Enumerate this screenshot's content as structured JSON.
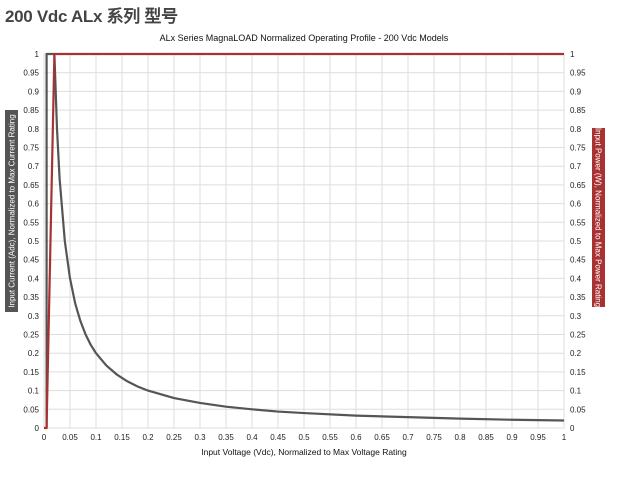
{
  "page": {
    "heading": "200 Vdc ALx 系列 型号"
  },
  "chart_data": {
    "type": "line",
    "title": "ALx Series MagnaLOAD Normalized Operating Profile - 200 Vdc Models",
    "xlabel": "Input Voltage (Vdc), Normalized to Max Voltage Rating",
    "ylabel_left": "Input Current (Adc), Normalized to Max Current Rating",
    "ylabel_right": "Input Power (W), Normalized to Max Power Rating",
    "xlim": [
      0,
      1
    ],
    "ylim": [
      0,
      1
    ],
    "grid": true,
    "x_ticks": [
      "0",
      "0.05",
      "0.1",
      "0.15",
      "0.2",
      "0.25",
      "0.3",
      "0.35",
      "0.4",
      "0.45",
      "0.5",
      "0.55",
      "0.6",
      "0.65",
      "0.7",
      "0.75",
      "0.8",
      "0.85",
      "0.9",
      "0.95",
      "1"
    ],
    "y_ticks": [
      "0",
      "0.05",
      "0.1",
      "0.15",
      "0.2",
      "0.25",
      "0.3",
      "0.35",
      "0.4",
      "0.45",
      "0.5",
      "0.55",
      "0.6",
      "0.65",
      "0.7",
      "0.75",
      "0.8",
      "0.85",
      "0.9",
      "0.95",
      "1"
    ],
    "series": [
      {
        "axis": "left",
        "color": "#555555",
        "x": [
          0.005,
          0.005,
          0.02,
          0.025,
          0.03,
          0.04,
          0.05,
          0.06,
          0.07,
          0.08,
          0.09,
          0.1,
          0.12,
          0.14,
          0.16,
          0.18,
          0.2,
          0.25,
          0.3,
          0.35,
          0.4,
          0.45,
          0.5,
          0.6,
          0.7,
          0.8,
          0.9,
          1.0
        ],
        "y": [
          0,
          1,
          1,
          0.8,
          0.667,
          0.5,
          0.4,
          0.333,
          0.286,
          0.25,
          0.222,
          0.2,
          0.167,
          0.143,
          0.125,
          0.111,
          0.1,
          0.08,
          0.067,
          0.057,
          0.05,
          0.044,
          0.04,
          0.033,
          0.029,
          0.025,
          0.022,
          0.02
        ]
      },
      {
        "axis": "right",
        "color": "#a83232",
        "x": [
          0,
          0.005,
          0.005,
          0.02,
          1.0
        ],
        "y": [
          0,
          0,
          0.005,
          1,
          1
        ]
      }
    ]
  },
  "colors": {
    "left_axis_label_bg": "#555555",
    "right_axis_label_bg": "#a83232",
    "grid": "#dddddd"
  }
}
